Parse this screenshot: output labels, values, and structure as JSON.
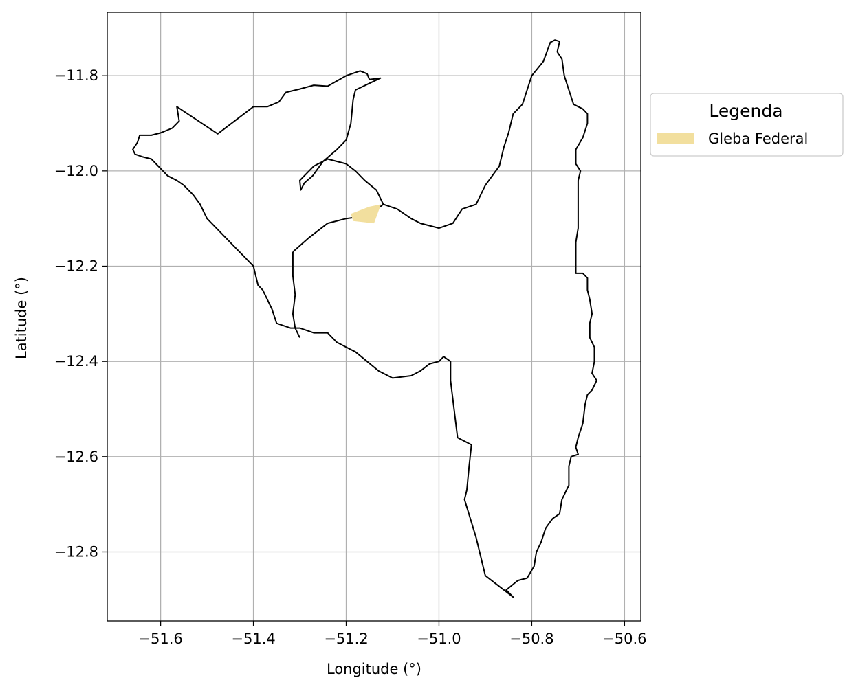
{
  "chart_data": {
    "type": "map",
    "xlabel": "Longitude (°)",
    "ylabel": "Latitude (°)",
    "xlim": [
      -51.715,
      -50.565
    ],
    "ylim": [
      -12.945,
      -11.667
    ],
    "xticks": [
      -51.6,
      -51.4,
      -51.2,
      -51.0,
      -50.8,
      -50.6
    ],
    "xtick_labels": [
      "−51.6",
      "−51.4",
      "−51.2",
      "−51.0",
      "−50.8",
      "−50.6"
    ],
    "yticks": [
      -11.8,
      -12.0,
      -12.2,
      -12.4,
      -12.6,
      -12.8
    ],
    "ytick_labels": [
      "−11.8",
      "−12.0",
      "−12.2",
      "−12.4",
      "−12.6",
      "−12.8"
    ],
    "grid": true,
    "legend": {
      "title": "Legenda",
      "placement": "outside-right-top",
      "entries": [
        {
          "label": "Gleba Federal",
          "color": "#f2df9e"
        }
      ]
    },
    "boundary": [
      [
        -51.565,
        -11.865
      ],
      [
        -51.477,
        -11.922
      ],
      [
        -51.4,
        -11.865
      ],
      [
        -51.37,
        -11.865
      ],
      [
        -51.345,
        -11.855
      ],
      [
        -51.33,
        -11.835
      ],
      [
        -51.3,
        -11.828
      ],
      [
        -51.27,
        -11.82
      ],
      [
        -51.24,
        -11.822
      ],
      [
        -51.2,
        -11.8
      ],
      [
        -51.17,
        -11.79
      ],
      [
        -51.155,
        -11.796
      ],
      [
        -51.15,
        -11.808
      ],
      [
        -51.126,
        -11.805
      ],
      [
        -51.18,
        -11.83
      ],
      [
        -51.185,
        -11.85
      ],
      [
        -51.19,
        -11.9
      ],
      [
        -51.2,
        -11.935
      ],
      [
        -51.22,
        -11.955
      ],
      [
        -51.25,
        -11.98
      ],
      [
        -51.272,
        -12.01
      ],
      [
        -51.29,
        -12.025
      ],
      [
        -51.298,
        -12.04
      ],
      [
        -51.3,
        -12.02
      ],
      [
        -51.27,
        -11.99
      ],
      [
        -51.24,
        -11.975
      ],
      [
        -51.2,
        -11.985
      ],
      [
        -51.18,
        -12.0
      ],
      [
        -51.16,
        -12.02
      ],
      [
        -51.135,
        -12.04
      ],
      [
        -51.12,
        -12.07
      ],
      [
        -51.09,
        -12.08
      ],
      [
        -51.06,
        -12.1
      ],
      [
        -51.04,
        -12.11
      ],
      [
        -51.0,
        -12.12
      ],
      [
        -50.97,
        -12.11
      ],
      [
        -50.95,
        -12.08
      ],
      [
        -50.92,
        -12.07
      ],
      [
        -50.9,
        -12.03
      ],
      [
        -50.87,
        -11.99
      ],
      [
        -50.86,
        -11.95
      ],
      [
        -50.85,
        -11.92
      ],
      [
        -50.84,
        -11.88
      ],
      [
        -50.82,
        -11.86
      ],
      [
        -50.8,
        -11.8
      ],
      [
        -50.775,
        -11.77
      ],
      [
        -50.76,
        -11.73
      ],
      [
        -50.75,
        -11.725
      ],
      [
        -50.74,
        -11.728
      ],
      [
        -50.745,
        -11.75
      ],
      [
        -50.735,
        -11.765
      ],
      [
        -50.73,
        -11.8
      ],
      [
        -50.72,
        -11.83
      ],
      [
        -50.71,
        -11.86
      ],
      [
        -50.69,
        -11.87
      ],
      [
        -50.68,
        -11.88
      ],
      [
        -50.68,
        -11.9
      ],
      [
        -50.69,
        -11.93
      ],
      [
        -50.705,
        -11.955
      ],
      [
        -50.705,
        -11.985
      ],
      [
        -50.695,
        -12.0
      ],
      [
        -50.7,
        -12.02
      ],
      [
        -50.7,
        -12.04
      ],
      [
        -50.7,
        -12.08
      ],
      [
        -50.7,
        -12.12
      ],
      [
        -50.705,
        -12.15
      ],
      [
        -50.705,
        -12.18
      ],
      [
        -50.705,
        -12.215
      ],
      [
        -50.69,
        -12.215
      ],
      [
        -50.68,
        -12.225
      ],
      [
        -50.68,
        -12.25
      ],
      [
        -50.675,
        -12.27
      ],
      [
        -50.67,
        -12.3
      ],
      [
        -50.675,
        -12.32
      ],
      [
        -50.675,
        -12.35
      ],
      [
        -50.665,
        -12.37
      ],
      [
        -50.665,
        -12.4
      ],
      [
        -50.67,
        -12.425
      ],
      [
        -50.66,
        -12.44
      ],
      [
        -50.67,
        -12.46
      ],
      [
        -50.68,
        -12.47
      ],
      [
        -50.685,
        -12.49
      ],
      [
        -50.69,
        -12.53
      ],
      [
        -50.7,
        -12.56
      ],
      [
        -50.705,
        -12.58
      ],
      [
        -50.7,
        -12.595
      ],
      [
        -50.715,
        -12.6
      ],
      [
        -50.72,
        -12.62
      ],
      [
        -50.72,
        -12.66
      ],
      [
        -50.735,
        -12.69
      ],
      [
        -50.74,
        -12.72
      ],
      [
        -50.755,
        -12.73
      ],
      [
        -50.77,
        -12.75
      ],
      [
        -50.78,
        -12.78
      ],
      [
        -50.79,
        -12.8
      ],
      [
        -50.795,
        -12.83
      ],
      [
        -50.81,
        -12.855
      ],
      [
        -50.83,
        -12.86
      ],
      [
        -50.855,
        -12.88
      ],
      [
        -50.84,
        -12.895
      ],
      [
        -50.9,
        -12.85
      ],
      [
        -50.92,
        -12.77
      ],
      [
        -50.945,
        -12.69
      ],
      [
        -50.94,
        -12.67
      ],
      [
        -50.935,
        -12.62
      ],
      [
        -50.93,
        -12.575
      ],
      [
        -50.96,
        -12.56
      ],
      [
        -50.965,
        -12.52
      ],
      [
        -50.97,
        -12.48
      ],
      [
        -50.975,
        -12.44
      ],
      [
        -50.975,
        -12.4
      ],
      [
        -50.99,
        -12.39
      ],
      [
        -51.0,
        -12.4
      ],
      [
        -51.02,
        -12.405
      ],
      [
        -51.04,
        -12.42
      ],
      [
        -51.06,
        -12.43
      ],
      [
        -51.1,
        -12.435
      ],
      [
        -51.13,
        -12.42
      ],
      [
        -51.155,
        -12.4
      ],
      [
        -51.18,
        -12.38
      ],
      [
        -51.2,
        -12.37
      ],
      [
        -51.22,
        -12.36
      ],
      [
        -51.24,
        -12.34
      ],
      [
        -51.27,
        -12.34
      ],
      [
        -51.3,
        -12.33
      ],
      [
        -51.32,
        -12.33
      ],
      [
        -51.35,
        -12.32
      ],
      [
        -51.36,
        -12.29
      ],
      [
        -51.38,
        -12.25
      ],
      [
        -51.39,
        -12.24
      ],
      [
        -51.395,
        -12.22
      ],
      [
        -51.4,
        -12.2
      ],
      [
        -51.42,
        -12.18
      ],
      [
        -51.44,
        -12.16
      ],
      [
        -51.46,
        -12.14
      ],
      [
        -51.48,
        -12.12
      ],
      [
        -51.5,
        -12.1
      ],
      [
        -51.515,
        -12.07
      ],
      [
        -51.53,
        -12.05
      ],
      [
        -51.55,
        -12.03
      ],
      [
        -51.565,
        -12.02
      ],
      [
        -51.585,
        -12.01
      ],
      [
        -51.6,
        -11.995
      ],
      [
        -51.62,
        -11.975
      ],
      [
        -51.64,
        -11.97
      ],
      [
        -51.655,
        -11.965
      ],
      [
        -51.66,
        -11.955
      ],
      [
        -51.65,
        -11.94
      ],
      [
        -51.645,
        -11.925
      ],
      [
        -51.62,
        -11.925
      ],
      [
        -51.6,
        -11.92
      ],
      [
        -51.575,
        -11.91
      ],
      [
        -51.56,
        -11.895
      ],
      [
        -51.565,
        -11.865
      ]
    ],
    "inner_line": [
      [
        -51.315,
        -12.17
      ],
      [
        -51.28,
        -12.14
      ],
      [
        -51.24,
        -12.11
      ],
      [
        -51.2,
        -12.1
      ],
      [
        -51.16,
        -12.095
      ],
      [
        -51.14,
        -12.085
      ],
      [
        -51.12,
        -12.07
      ]
    ],
    "inner_line_2": [
      [
        -51.315,
        -12.17
      ],
      [
        -51.315,
        -12.22
      ],
      [
        -51.31,
        -12.26
      ],
      [
        -51.315,
        -12.3
      ],
      [
        -51.31,
        -12.33
      ],
      [
        -51.3,
        -12.35
      ]
    ],
    "gleba_federal": [
      [
        -51.19,
        -12.09
      ],
      [
        -51.15,
        -12.075
      ],
      [
        -51.125,
        -12.07
      ],
      [
        -51.14,
        -12.11
      ],
      [
        -51.185,
        -12.105
      ]
    ]
  }
}
